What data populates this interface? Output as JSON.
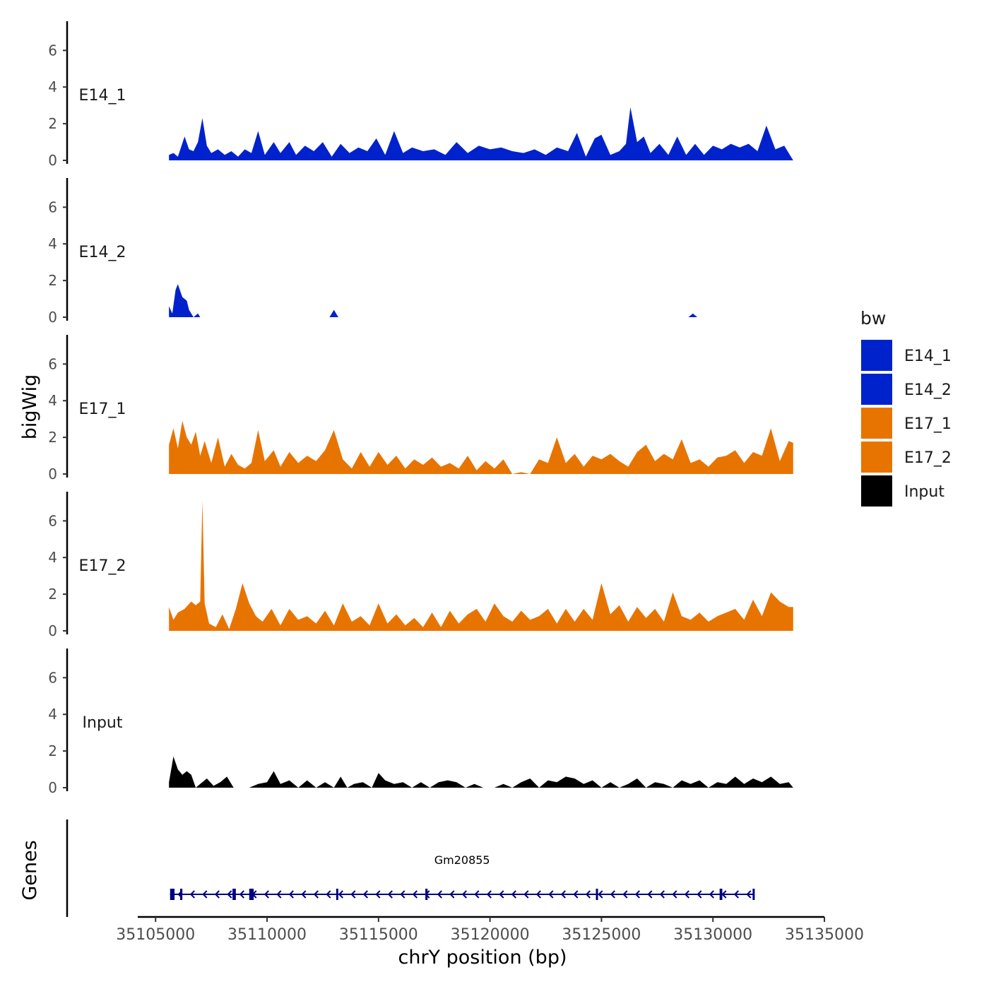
{
  "chart_data": {
    "type": "area",
    "chromosome": "chrY",
    "xlabel": "chrY position (bp)",
    "ylabel": "bigWig",
    "genes_label": "Genes",
    "xlim": [
      35104200,
      35135000
    ],
    "ylim": [
      0,
      7.4
    ],
    "x_ticks": [
      {
        "value": 35105000,
        "label": "35105000"
      },
      {
        "value": 35110000,
        "label": "35110000"
      },
      {
        "value": 35115000,
        "label": "35115000"
      },
      {
        "value": 35120000,
        "label": "35120000"
      },
      {
        "value": 35125000,
        "label": "35125000"
      },
      {
        "value": 35130000,
        "label": "35130000"
      },
      {
        "value": 35135000,
        "label": "35135000"
      }
    ],
    "y_ticks": [
      {
        "value": 0,
        "label": "0"
      },
      {
        "value": 2,
        "label": "2"
      },
      {
        "value": 4,
        "label": "4"
      },
      {
        "value": 6,
        "label": "6"
      }
    ],
    "legend": {
      "title": "bw",
      "entries": [
        {
          "name": "E14_1",
          "color": "#0022CC"
        },
        {
          "name": "E14_2",
          "color": "#0022CC"
        },
        {
          "name": "E17_1",
          "color": "#E87400"
        },
        {
          "name": "E17_2",
          "color": "#E87400"
        },
        {
          "name": "Input",
          "color": "#000000"
        }
      ]
    },
    "series": [
      {
        "name": "E14_1",
        "label": "E14_1",
        "color": "#0022CC",
        "x": [
          35105600,
          35105800,
          35106000,
          35106300,
          35106500,
          35106700,
          35106900,
          35107100,
          35107300,
          35107500,
          35107800,
          35108100,
          35108400,
          35108700,
          35109000,
          35109300,
          35109600,
          35109900,
          35110300,
          35110600,
          35111000,
          35111300,
          35111700,
          35112100,
          35112500,
          35112900,
          35113300,
          35113700,
          35114100,
          35114500,
          35114900,
          35115300,
          35115700,
          35116100,
          35116500,
          35117000,
          35117500,
          35118000,
          35118500,
          35119000,
          35119500,
          35120000,
          35120500,
          35121000,
          35121500,
          35122000,
          35122500,
          35123000,
          35123500,
          35123900,
          35124300,
          35124700,
          35125000,
          35125400,
          35125800,
          35126100,
          35126300,
          35126600,
          35126900,
          35127200,
          35127600,
          35128000,
          35128400,
          35128800,
          35129200,
          35129600,
          35130000,
          35130400,
          35130800,
          35131200,
          35131600,
          35132000,
          35132400,
          35132800,
          35133200,
          35133600
        ],
        "values": [
          0.3,
          0.4,
          0.2,
          1.3,
          0.6,
          0.5,
          1.0,
          2.3,
          0.8,
          0.4,
          0.6,
          0.3,
          0.5,
          0.2,
          0.6,
          0.4,
          1.6,
          0.3,
          1.0,
          0.4,
          1.0,
          0.3,
          0.8,
          0.5,
          1.0,
          0.2,
          0.9,
          0.4,
          0.7,
          0.5,
          1.2,
          0.3,
          1.6,
          0.4,
          0.7,
          0.5,
          0.6,
          0.3,
          1.0,
          0.4,
          0.8,
          0.6,
          0.7,
          0.5,
          0.4,
          0.6,
          0.3,
          0.7,
          0.5,
          1.5,
          0.2,
          1.2,
          1.4,
          0.3,
          0.5,
          0.9,
          2.9,
          1.0,
          1.3,
          0.4,
          0.9,
          0.3,
          1.3,
          0.3,
          0.9,
          0.3,
          0.8,
          0.6,
          0.9,
          0.7,
          0.9,
          0.5,
          1.9,
          0.6,
          0.8,
          0.0
        ]
      },
      {
        "name": "E14_2",
        "label": "E14_2",
        "color": "#0022CC",
        "x": [
          35105600,
          35105750,
          35105900,
          35106000,
          35106200,
          35106400,
          35106500,
          35106700,
          35106900,
          35107000,
          35112800,
          35113000,
          35113200,
          35128900,
          35129100,
          35129300
        ],
        "values": [
          0.6,
          0.2,
          1.5,
          1.8,
          1.1,
          0.9,
          0.4,
          0.0,
          0.2,
          0.0,
          0.0,
          0.4,
          0.0,
          0.0,
          0.2,
          0.0
        ]
      },
      {
        "name": "E17_1",
        "label": "E17_1",
        "color": "#E87400",
        "x": [
          35105600,
          35105800,
          35106000,
          35106200,
          35106400,
          35106600,
          35106800,
          35107000,
          35107200,
          35107500,
          35107800,
          35108100,
          35108400,
          35108700,
          35109000,
          35109300,
          35109600,
          35109900,
          35110300,
          35110600,
          35111000,
          35111400,
          35111800,
          35112200,
          35112600,
          35113000,
          35113400,
          35113800,
          35114200,
          35114600,
          35115000,
          35115400,
          35115800,
          35116200,
          35116600,
          35117000,
          35117400,
          35117800,
          35118200,
          35118600,
          35119000,
          35119400,
          35119800,
          35120200,
          35120600,
          35121000,
          35121400,
          35121800,
          35122200,
          35122600,
          35123000,
          35123400,
          35123800,
          35124200,
          35124600,
          35125000,
          35125400,
          35125800,
          35126200,
          35126600,
          35127000,
          35127400,
          35127800,
          35128200,
          35128600,
          35129000,
          35129400,
          35129800,
          35130200,
          35130600,
          35131000,
          35131400,
          35131800,
          35132200,
          35132600,
          35133000,
          35133400,
          35133600
        ],
        "values": [
          1.6,
          2.5,
          1.4,
          2.9,
          2.0,
          1.6,
          2.3,
          1.0,
          1.8,
          0.6,
          2.0,
          0.4,
          1.1,
          0.5,
          0.3,
          0.6,
          2.4,
          0.7,
          1.3,
          0.4,
          1.2,
          0.6,
          1.0,
          0.7,
          1.3,
          2.4,
          0.8,
          0.3,
          1.2,
          0.4,
          1.2,
          0.5,
          1.0,
          0.3,
          0.8,
          0.5,
          0.9,
          0.4,
          0.6,
          0.3,
          1.0,
          0.2,
          0.7,
          0.3,
          0.8,
          0.0,
          0.1,
          0.0,
          0.8,
          0.6,
          2.0,
          0.6,
          1.1,
          0.4,
          1.0,
          0.8,
          1.1,
          0.7,
          0.4,
          1.2,
          1.6,
          0.7,
          1.1,
          0.8,
          1.9,
          0.6,
          0.8,
          0.4,
          0.9,
          1.0,
          1.3,
          0.6,
          1.2,
          1.0,
          2.5,
          0.7,
          1.8,
          1.7
        ]
      },
      {
        "name": "E17_2",
        "label": "E17_2",
        "color": "#E87400",
        "x": [
          35105600,
          35105800,
          35106000,
          35106300,
          35106600,
          35106800,
          35107000,
          35107100,
          35107200,
          35107400,
          35107700,
          35108000,
          35108300,
          35108600,
          35108900,
          35109200,
          35109500,
          35109800,
          35110200,
          35110600,
          35111000,
          35111400,
          35111800,
          35112200,
          35112600,
          35113000,
          35113400,
          35113800,
          35114200,
          35114600,
          35115000,
          35115400,
          35115800,
          35116200,
          35116600,
          35117000,
          35117400,
          35117800,
          35118200,
          35118600,
          35119000,
          35119400,
          35119800,
          35120200,
          35120600,
          35121000,
          35121400,
          35121800,
          35122200,
          35122600,
          35123000,
          35123400,
          35123800,
          35124200,
          35124600,
          35125000,
          35125400,
          35125800,
          35126200,
          35126600,
          35127000,
          35127400,
          35127800,
          35128200,
          35128600,
          35129000,
          35129400,
          35129800,
          35130200,
          35130600,
          35131000,
          35131400,
          35131800,
          35132200,
          35132600,
          35133000,
          35133400,
          35133600
        ],
        "values": [
          1.3,
          0.6,
          1.0,
          1.2,
          1.6,
          1.4,
          1.6,
          7.1,
          1.5,
          0.4,
          0.2,
          0.9,
          0.1,
          1.2,
          2.6,
          1.5,
          0.8,
          0.5,
          1.2,
          0.3,
          1.2,
          0.6,
          0.8,
          0.4,
          1.1,
          0.3,
          1.5,
          0.5,
          0.8,
          0.3,
          1.5,
          0.4,
          0.9,
          0.3,
          0.7,
          0.2,
          1.0,
          0.2,
          1.1,
          0.4,
          0.9,
          1.2,
          0.5,
          1.5,
          0.8,
          0.5,
          1.1,
          0.6,
          0.8,
          1.2,
          0.4,
          1.2,
          0.5,
          1.2,
          0.6,
          2.6,
          0.9,
          1.4,
          0.5,
          1.3,
          0.7,
          1.2,
          0.5,
          2.1,
          0.8,
          0.6,
          1.0,
          0.5,
          0.8,
          1.0,
          1.2,
          0.6,
          1.7,
          0.8,
          2.1,
          1.6,
          1.3,
          1.3
        ]
      },
      {
        "name": "Input",
        "label": "Input",
        "color": "#000000",
        "x": [
          35105600,
          35105800,
          35106000,
          35106200,
          35106400,
          35106600,
          35106800,
          35107000,
          35107300,
          35107600,
          35107900,
          35108200,
          35108500,
          35108800,
          35109200,
          35109600,
          35110000,
          35110300,
          35110600,
          35111000,
          35111400,
          35111800,
          35112200,
          35112600,
          35113000,
          35113300,
          35113600,
          35113900,
          35114300,
          35114700,
          35115000,
          35115300,
          35115700,
          35116100,
          35116500,
          35116900,
          35117300,
          35117700,
          35118100,
          35118500,
          35118900,
          35119300,
          35119700,
          35120200,
          35120600,
          35121000,
          35121400,
          35121800,
          35122200,
          35122600,
          35123000,
          35123400,
          35123800,
          35124200,
          35124600,
          35125000,
          35125400,
          35125800,
          35126200,
          35126600,
          35127000,
          35127400,
          35127800,
          35128200,
          35128600,
          35129000,
          35129400,
          35129800,
          35130200,
          35130600,
          35131000,
          35131400,
          35131800,
          35132200,
          35132600,
          35133000,
          35133400,
          35133600
        ],
        "values": [
          0.3,
          1.7,
          1.0,
          0.7,
          0.9,
          0.7,
          0.0,
          0.2,
          0.5,
          0.1,
          0.3,
          0.6,
          0.0,
          0.0,
          0.0,
          0.2,
          0.3,
          0.9,
          0.2,
          0.4,
          0.0,
          0.4,
          0.0,
          0.3,
          0.0,
          0.6,
          0.0,
          0.2,
          0.3,
          0.0,
          0.8,
          0.4,
          0.2,
          0.3,
          0.0,
          0.3,
          0.0,
          0.3,
          0.4,
          0.3,
          0.0,
          0.2,
          0.0,
          0.0,
          0.2,
          0.0,
          0.3,
          0.5,
          0.0,
          0.4,
          0.3,
          0.6,
          0.5,
          0.2,
          0.4,
          0.0,
          0.3,
          0.0,
          0.2,
          0.5,
          0.0,
          0.3,
          0.2,
          0.0,
          0.4,
          0.2,
          0.4,
          0.0,
          0.3,
          0.2,
          0.6,
          0.2,
          0.5,
          0.3,
          0.6,
          0.2,
          0.3,
          0.0
        ]
      }
    ],
    "genes": [
      {
        "name": "Gm20855",
        "strand": "-",
        "start": 35105650,
        "end": 35131850,
        "color": "#000080",
        "exons": [
          {
            "start": 35105650,
            "end": 35105850
          },
          {
            "start": 35106100,
            "end": 35106200
          },
          {
            "start": 35108450,
            "end": 35108600
          },
          {
            "start": 35109200,
            "end": 35109400
          },
          {
            "start": 35113100,
            "end": 35113180
          },
          {
            "start": 35117100,
            "end": 35117200
          },
          {
            "start": 35124750,
            "end": 35124830
          },
          {
            "start": 35130300,
            "end": 35130420
          },
          {
            "start": 35131780,
            "end": 35131850
          }
        ]
      }
    ]
  }
}
